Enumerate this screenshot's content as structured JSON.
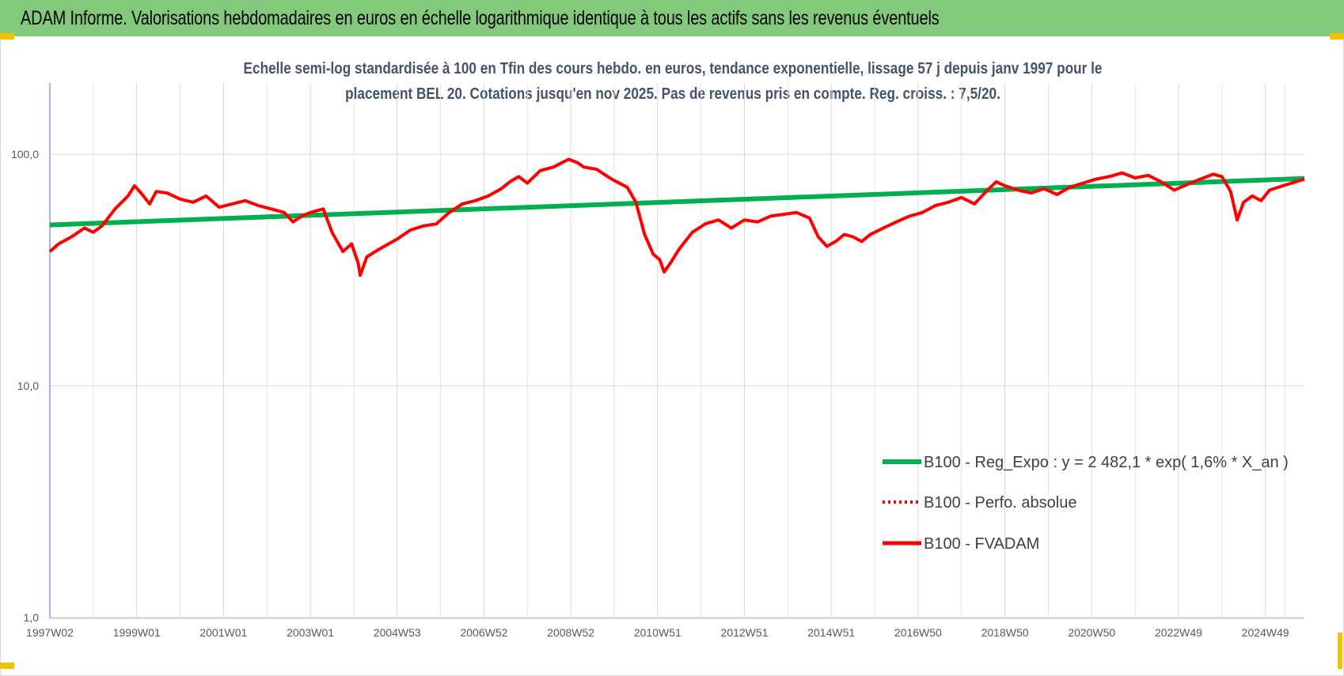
{
  "header": {
    "title": "ADAM Informe. Valorisations hebdomadaires en euros en échelle logarithmique identique à tous les actifs sans les revenus éventuels"
  },
  "chart_data": {
    "type": "line",
    "title_line1": "Echelle semi-log standardisée à 100 en Tfin des cours hebdo. en euros, tendance exponentielle, lissage 57 j depuis janv 1997 pour le",
    "title_line2": "placement BEL 20. Cotations jusqu'en nov 2025. Pas de revenus pris en compte. Reg. croiss. : 7,5/20.",
    "y_scale": "log",
    "ylim": [
      1,
      200
    ],
    "y_ticks": [
      {
        "value": 100,
        "label": "100,0"
      },
      {
        "value": 10,
        "label": "10,0"
      },
      {
        "value": 1,
        "label": "1,0"
      }
    ],
    "x_range": [
      1997.0,
      2025.9
    ],
    "x_ticks": [
      {
        "x": 1997.0,
        "label": "1997W02"
      },
      {
        "x": 1999.0,
        "label": "1999W01"
      },
      {
        "x": 2001.0,
        "label": "2001W01"
      },
      {
        "x": 2003.0,
        "label": "2003W01"
      },
      {
        "x": 2005.0,
        "label": "2004W53"
      },
      {
        "x": 2007.0,
        "label": "2006W52"
      },
      {
        "x": 2009.0,
        "label": "2008W52"
      },
      {
        "x": 2011.0,
        "label": "2010W51"
      },
      {
        "x": 2013.0,
        "label": "2012W51"
      },
      {
        "x": 2015.0,
        "label": "2014W51"
      },
      {
        "x": 2017.0,
        "label": "2016W50"
      },
      {
        "x": 2019.0,
        "label": "2018W50"
      },
      {
        "x": 2021.0,
        "label": "2020W50"
      },
      {
        "x": 2023.0,
        "label": "2022W49"
      },
      {
        "x": 2025.0,
        "label": "2024W49"
      }
    ],
    "grid": true,
    "legend_position": "bottom-right",
    "series": [
      {
        "name": "B100 - Reg_Expo : y = 2 482,1 * exp( 1,6% *  X_an )",
        "color": "#00b050",
        "style": "solid",
        "points": [
          [
            1997.0,
            49.5
          ],
          [
            2025.9,
            78.5
          ]
        ]
      },
      {
        "name": "B100 - Perfo. absolue",
        "color": "#ff0000",
        "style": "dotted",
        "points": []
      },
      {
        "name": "B100 - FVADAM",
        "color": "#ff0000",
        "style": "solid",
        "points": [
          [
            1997.0,
            38
          ],
          [
            1997.2,
            41
          ],
          [
            1997.5,
            44
          ],
          [
            1997.8,
            48
          ],
          [
            1998.0,
            46
          ],
          [
            1998.2,
            49
          ],
          [
            1998.5,
            58
          ],
          [
            1998.8,
            66
          ],
          [
            1998.95,
            73
          ],
          [
            1999.1,
            68
          ],
          [
            1999.3,
            61
          ],
          [
            1999.45,
            69
          ],
          [
            1999.7,
            68
          ],
          [
            2000.0,
            64
          ],
          [
            2000.3,
            62
          ],
          [
            2000.6,
            66
          ],
          [
            2000.9,
            59
          ],
          [
            2001.2,
            61
          ],
          [
            2001.5,
            63
          ],
          [
            2001.8,
            60
          ],
          [
            2002.1,
            58
          ],
          [
            2002.4,
            56
          ],
          [
            2002.6,
            51
          ],
          [
            2002.8,
            54
          ],
          [
            2003.0,
            56
          ],
          [
            2003.3,
            58
          ],
          [
            2003.5,
            46
          ],
          [
            2003.75,
            38
          ],
          [
            2003.95,
            41
          ],
          [
            2004.1,
            34
          ],
          [
            2004.15,
            30
          ],
          [
            2004.3,
            36
          ],
          [
            2004.5,
            38
          ],
          [
            2004.7,
            40
          ],
          [
            2005.0,
            43
          ],
          [
            2005.3,
            47
          ],
          [
            2005.6,
            49
          ],
          [
            2005.9,
            50
          ],
          [
            2006.2,
            56
          ],
          [
            2006.5,
            61
          ],
          [
            2006.8,
            63
          ],
          [
            2007.1,
            66
          ],
          [
            2007.4,
            71
          ],
          [
            2007.6,
            76
          ],
          [
            2007.8,
            80
          ],
          [
            2008.0,
            75
          ],
          [
            2008.3,
            85
          ],
          [
            2008.6,
            88
          ],
          [
            2008.8,
            92
          ],
          [
            2008.95,
            95
          ],
          [
            2009.15,
            92
          ],
          [
            2009.3,
            88
          ],
          [
            2009.6,
            86
          ],
          [
            2009.85,
            80
          ],
          [
            2010.0,
            77
          ],
          [
            2010.3,
            72
          ],
          [
            2010.5,
            62
          ],
          [
            2010.7,
            45
          ],
          [
            2010.9,
            37
          ],
          [
            2011.05,
            35
          ],
          [
            2011.15,
            31
          ],
          [
            2011.3,
            34
          ],
          [
            2011.5,
            39
          ],
          [
            2011.8,
            46
          ],
          [
            2012.1,
            50
          ],
          [
            2012.4,
            52
          ],
          [
            2012.7,
            48
          ],
          [
            2013.0,
            52
          ],
          [
            2013.3,
            51
          ],
          [
            2013.6,
            54
          ],
          [
            2013.9,
            55
          ],
          [
            2014.2,
            56
          ],
          [
            2014.5,
            53
          ],
          [
            2014.7,
            44
          ],
          [
            2014.9,
            40
          ],
          [
            2015.1,
            42
          ],
          [
            2015.3,
            45
          ],
          [
            2015.5,
            44
          ],
          [
            2015.7,
            42
          ],
          [
            2015.9,
            45
          ],
          [
            2016.2,
            48
          ],
          [
            2016.5,
            51
          ],
          [
            2016.8,
            54
          ],
          [
            2017.1,
            56
          ],
          [
            2017.4,
            60
          ],
          [
            2017.7,
            62
          ],
          [
            2018.0,
            65
          ],
          [
            2018.3,
            61
          ],
          [
            2018.6,
            70
          ],
          [
            2018.8,
            76
          ],
          [
            2019.0,
            73
          ],
          [
            2019.3,
            70
          ],
          [
            2019.6,
            68
          ],
          [
            2019.9,
            71
          ],
          [
            2020.2,
            67
          ],
          [
            2020.5,
            72
          ],
          [
            2020.8,
            75
          ],
          [
            2021.1,
            78
          ],
          [
            2021.4,
            80
          ],
          [
            2021.7,
            83
          ],
          [
            2022.0,
            79
          ],
          [
            2022.3,
            81
          ],
          [
            2022.6,
            76
          ],
          [
            2022.9,
            70
          ],
          [
            2023.2,
            74
          ],
          [
            2023.5,
            78
          ],
          [
            2023.8,
            82
          ],
          [
            2024.0,
            80
          ],
          [
            2024.2,
            69
          ],
          [
            2024.35,
            52
          ],
          [
            2024.5,
            62
          ],
          [
            2024.7,
            66
          ],
          [
            2024.9,
            63
          ],
          [
            2025.1,
            70
          ],
          [
            2025.4,
            73
          ],
          [
            2025.9,
            78
          ]
        ]
      }
    ]
  }
}
